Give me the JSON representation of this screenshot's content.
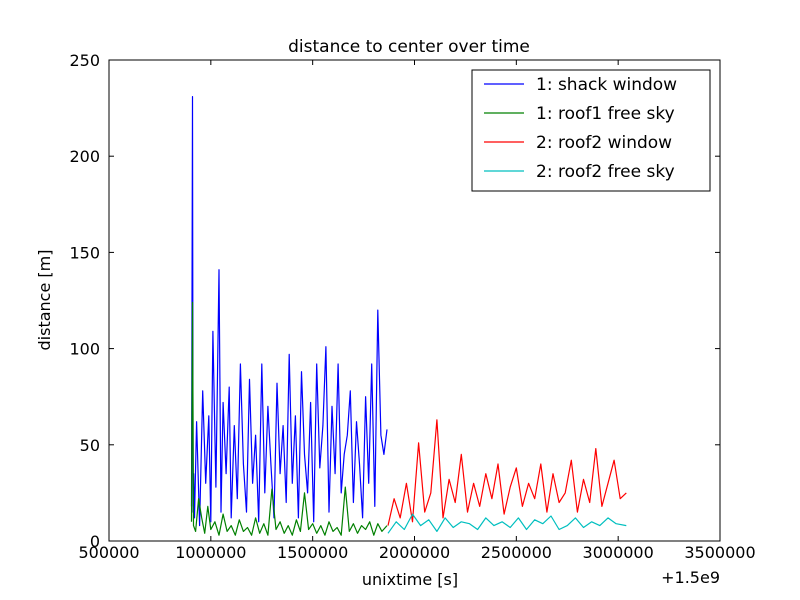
{
  "chart_data": {
    "type": "line",
    "title": "distance to center over time",
    "xlabel": "unixtime [s]",
    "ylabel": "distance [m]",
    "x_offset_label": "+1.5e9",
    "xlim": [
      500000,
      3500000
    ],
    "ylim": [
      0,
      250
    ],
    "x_ticks": [
      500000,
      1000000,
      1500000,
      2000000,
      2500000,
      3000000,
      3500000
    ],
    "x_tick_labels": [
      "500000",
      "1000000",
      "1500000",
      "2000000",
      "2500000",
      "3000000",
      "3500000"
    ],
    "y_ticks": [
      0,
      50,
      100,
      150,
      200,
      250
    ],
    "y_tick_labels": [
      "0",
      "50",
      "100",
      "150",
      "200",
      "250"
    ],
    "grid": false,
    "legend_position": "top-right",
    "series": [
      {
        "name": "1: shack window",
        "color": "#0000ff",
        "x": [
          905000,
          910000,
          913000,
          916000,
          920000,
          930000,
          945000,
          960000,
          975000,
          990000,
          1000000,
          1010000,
          1025000,
          1040000,
          1050000,
          1060000,
          1075000,
          1090000,
          1100000,
          1115000,
          1130000,
          1145000,
          1160000,
          1175000,
          1190000,
          1205000,
          1220000,
          1235000,
          1250000,
          1265000,
          1280000,
          1295000,
          1310000,
          1325000,
          1340000,
          1355000,
          1370000,
          1385000,
          1400000,
          1415000,
          1430000,
          1445000,
          1460000,
          1475000,
          1490000,
          1505000,
          1520000,
          1535000,
          1550000,
          1565000,
          1580000,
          1595000,
          1610000,
          1625000,
          1640000,
          1655000,
          1670000,
          1685000,
          1700000,
          1715000,
          1730000,
          1745000,
          1760000,
          1775000,
          1790000,
          1805000,
          1820000,
          1835000,
          1850000,
          1865000
        ],
        "y": [
          18,
          231,
          15,
          35,
          12,
          62,
          8,
          78,
          30,
          65,
          10,
          109,
          28,
          141,
          15,
          72,
          35,
          80,
          12,
          60,
          22,
          92,
          40,
          15,
          84,
          30,
          55,
          10,
          92,
          25,
          70,
          40,
          12,
          82,
          35,
          60,
          20,
          97,
          30,
          65,
          12,
          88,
          45,
          25,
          72,
          10,
          92,
          38,
          60,
          101,
          15,
          70,
          35,
          92,
          25,
          45,
          55,
          78,
          20,
          62,
          40,
          12,
          75,
          30,
          92,
          18,
          120,
          55,
          45,
          58
        ]
      },
      {
        "name": "1: roof1 free sky",
        "color": "#008000",
        "x": [
          905000,
          910000,
          915000,
          925000,
          940000,
          955000,
          970000,
          985000,
          1000000,
          1020000,
          1040000,
          1060000,
          1080000,
          1100000,
          1120000,
          1140000,
          1160000,
          1180000,
          1200000,
          1220000,
          1240000,
          1260000,
          1280000,
          1300000,
          1320000,
          1340000,
          1360000,
          1380000,
          1400000,
          1420000,
          1440000,
          1460000,
          1480000,
          1500000,
          1520000,
          1540000,
          1560000,
          1580000,
          1600000,
          1620000,
          1640000,
          1660000,
          1680000,
          1700000,
          1720000,
          1740000,
          1760000,
          1780000,
          1800000,
          1820000,
          1840000,
          1865000
        ],
        "y": [
          10,
          124,
          8,
          5,
          22,
          12,
          4,
          18,
          6,
          10,
          3,
          14,
          5,
          8,
          3,
          11,
          5,
          7,
          3,
          12,
          4,
          9,
          3,
          27,
          6,
          10,
          4,
          8,
          3,
          11,
          5,
          25,
          6,
          9,
          4,
          8,
          3,
          10,
          5,
          7,
          3,
          28,
          5,
          9,
          4,
          8,
          6,
          10,
          3,
          9,
          5,
          8
        ]
      },
      {
        "name": "2: roof2 window",
        "color": "#ff0000",
        "x": [
          1870000,
          1900000,
          1930000,
          1960000,
          1990000,
          2020000,
          2050000,
          2080000,
          2110000,
          2140000,
          2170000,
          2200000,
          2230000,
          2260000,
          2290000,
          2320000,
          2350000,
          2380000,
          2410000,
          2440000,
          2470000,
          2500000,
          2530000,
          2560000,
          2590000,
          2620000,
          2650000,
          2680000,
          2710000,
          2740000,
          2770000,
          2800000,
          2830000,
          2860000,
          2890000,
          2920000,
          2950000,
          2980000,
          3010000,
          3040000
        ],
        "y": [
          8,
          22,
          12,
          30,
          10,
          51,
          15,
          25,
          63,
          12,
          32,
          20,
          45,
          15,
          30,
          18,
          35,
          22,
          40,
          14,
          28,
          38,
          18,
          30,
          22,
          40,
          15,
          35,
          20,
          25,
          42,
          15,
          32,
          20,
          48,
          18,
          30,
          42,
          22,
          25
        ]
      },
      {
        "name": "2: roof2 free sky",
        "color": "#00bfbf",
        "x": [
          1870000,
          1910000,
          1950000,
          1990000,
          2030000,
          2070000,
          2110000,
          2150000,
          2190000,
          2230000,
          2270000,
          2310000,
          2350000,
          2390000,
          2430000,
          2470000,
          2510000,
          2550000,
          2590000,
          2630000,
          2670000,
          2710000,
          2750000,
          2790000,
          2830000,
          2870000,
          2910000,
          2950000,
          2990000,
          3040000
        ],
        "y": [
          4,
          10,
          6,
          14,
          8,
          11,
          5,
          12,
          7,
          10,
          9,
          6,
          12,
          8,
          10,
          7,
          12,
          6,
          11,
          9,
          13,
          6,
          8,
          12,
          7,
          10,
          8,
          12,
          9,
          8
        ]
      }
    ]
  }
}
